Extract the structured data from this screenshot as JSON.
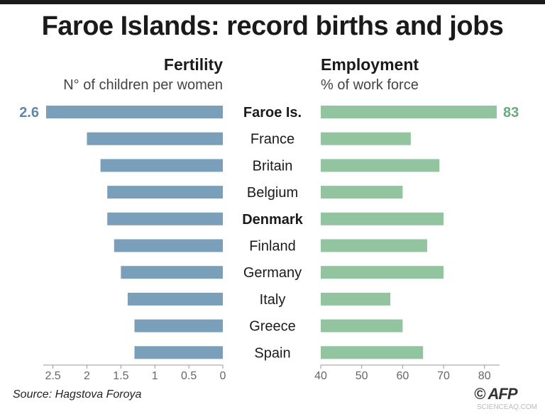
{
  "title": "Faroe Islands: record births and jobs",
  "source": "Source: Hagstova Foroya",
  "logo_text": "© AFP",
  "watermark": "SCIENCEAQ.COM",
  "chart_data": [
    {
      "type": "bar",
      "title": "Fertility",
      "subtitle": "N° of children per women",
      "categories": [
        "Faroe Is.",
        "France",
        "Britain",
        "Belgium",
        "Denmark",
        "Finland",
        "Germany",
        "Italy",
        "Greece",
        "Spain"
      ],
      "bold_categories": [
        "Faroe Is.",
        "Denmark"
      ],
      "values": [
        2.6,
        2.0,
        1.8,
        1.7,
        1.7,
        1.6,
        1.5,
        1.4,
        1.3,
        1.3
      ],
      "data_labels": [
        "2.6",
        "",
        "",
        "",
        "",
        "",
        "",
        "",
        "",
        ""
      ],
      "xlim": [
        2.6,
        0
      ],
      "ticks": [
        2.5,
        2,
        1.5,
        1,
        0.5,
        0
      ],
      "tick_labels": [
        "2.5",
        "2",
        "1.5",
        "1",
        "0.5",
        "0"
      ],
      "color": "#7a9fba",
      "label_color": "#5b87a8",
      "grid": false
    },
    {
      "type": "bar",
      "title": "Employment",
      "subtitle": "% of work force",
      "categories": [
        "Faroe Is.",
        "France",
        "Britain",
        "Belgium",
        "Denmark",
        "Finland",
        "Germany",
        "Italy",
        "Greece",
        "Spain"
      ],
      "values": [
        83,
        62,
        69,
        60,
        70,
        66,
        70,
        57,
        60,
        65
      ],
      "data_labels": [
        "83",
        "",
        "",
        "",
        "",
        "",
        "",
        "",
        "",
        ""
      ],
      "xlim": [
        40,
        83
      ],
      "ticks": [
        40,
        50,
        60,
        70,
        80
      ],
      "tick_labels": [
        "40",
        "50",
        "60",
        "70",
        "80"
      ],
      "color": "#92c49f",
      "label_color": "#6aa97c",
      "grid": false
    }
  ]
}
